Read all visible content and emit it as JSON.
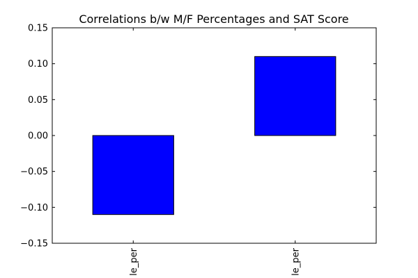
{
  "chart_data": {
    "type": "bar",
    "title": "Correlations b/w M/F Percentages and SAT Score",
    "categories": [
      "le_per",
      "le_per"
    ],
    "values": [
      -0.11,
      0.11
    ],
    "bar_color": "#0000ff",
    "edge_color": "#000000",
    "ylim": [
      -0.15,
      0.15
    ],
    "yticks": [
      0.15,
      0.1,
      0.05,
      0.0,
      -0.05,
      -0.1,
      -0.15
    ],
    "ytick_labels": [
      "0.15",
      "0.10",
      "0.05",
      "0.00",
      "−0.05",
      "−0.10",
      "−0.15"
    ],
    "xlabel": "",
    "ylabel": "",
    "grid": false,
    "legend": false
  }
}
